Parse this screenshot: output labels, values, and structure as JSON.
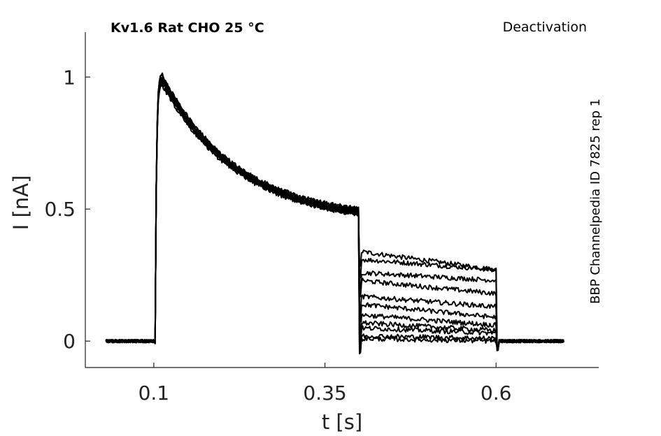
{
  "chart_data": {
    "type": "line",
    "title": "Kv1.6  Rat  CHO  25 °C",
    "protocol": "Deactivation",
    "side_label": "BBP Channelpedia ID 7825 rep 1",
    "xlabel": "t [s]",
    "ylabel": "I [nA]",
    "xlim": [
      0.0,
      0.75
    ],
    "ylim": [
      -0.1,
      1.17
    ],
    "xticks": [
      0.1,
      0.35,
      0.6
    ],
    "xtick_labels": [
      "0.1",
      "0.35",
      "0.6"
    ],
    "yticks": [
      0,
      0.5,
      1
    ],
    "ytick_labels": [
      "0",
      "0.5",
      "1"
    ],
    "grid": false,
    "legend": "none",
    "line_color": "#000000",
    "protocol_times": {
      "start": 0.03,
      "step_on": 0.102,
      "step_off": 0.4,
      "tail_end": 0.6,
      "end": 0.7
    },
    "activation_peak": 1.02,
    "activation_end": 0.49,
    "tail_levels_start": [
      0.34,
      0.31,
      0.26,
      0.23,
      0.17,
      0.14,
      0.1,
      0.07,
      0.05,
      0.02,
      0.01
    ],
    "tail_levels_end": [
      0.27,
      0.27,
      0.23,
      0.18,
      0.13,
      0.09,
      0.06,
      0.04,
      0.03,
      0.01,
      0.0
    ]
  }
}
